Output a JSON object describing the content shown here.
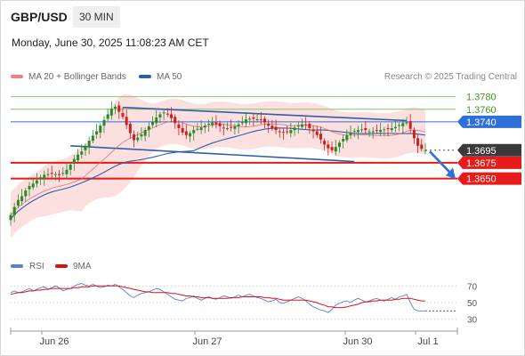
{
  "header": {
    "symbol": "GBP/USD",
    "timeframe": "30 MIN",
    "datetime": "Monday, June 30, 2025 11:08:23 AM CET"
  },
  "legend": {
    "ma20": "MA 20 + Bollinger Bands",
    "ma50": "MA 50",
    "copyright": "Research © 2025 Trading Central"
  },
  "colors": {
    "up": "#2a8a2a",
    "down": "#cc1f1f",
    "ma20": "#f08080",
    "ma50": "#2f5ea8",
    "band": "#fbd5d5",
    "resistance_light": "#8ac46a",
    "pivot": "#2f6fd8",
    "support": "#e81b1b",
    "current": "#3a3a3a",
    "channel": "#2f5ea8",
    "rsi": "#5b7fd6",
    "rsi_ma": "#e01010"
  },
  "chart_data": [
    {
      "type": "candlestick",
      "title": "",
      "x_labels": [
        "Jun 26",
        "Jun 27",
        "Jun 30",
        "Jul 1"
      ],
      "ylim": [
        1.3535,
        1.3795
      ],
      "levels": [
        {
          "name": "resistance-2",
          "value": 1.378,
          "label": "1.3780",
          "style": "resistance_light"
        },
        {
          "name": "resistance-1",
          "value": 1.376,
          "label": "1.3760",
          "style": "resistance_light"
        },
        {
          "name": "pivot",
          "value": 1.374,
          "label": "1.3740",
          "style": "pivot"
        },
        {
          "name": "current-price",
          "value": 1.3695,
          "label": "1.3695",
          "style": "current"
        },
        {
          "name": "support-1",
          "value": 1.3675,
          "label": "1.3675",
          "style": "support"
        },
        {
          "name": "support-2",
          "value": 1.365,
          "label": "1.3650",
          "style": "support"
        }
      ],
      "close": [
        1.3592,
        1.3605,
        1.3616,
        1.3622,
        1.3631,
        1.3638,
        1.3642,
        1.3647,
        1.3652,
        1.3656,
        1.3657,
        1.3658,
        1.3657,
        1.3656,
        1.3659,
        1.3664,
        1.3672,
        1.3681,
        1.3688,
        1.3693,
        1.3702,
        1.371,
        1.3718,
        1.3725,
        1.3734,
        1.3743,
        1.3752,
        1.3761,
        1.3764,
        1.3756,
        1.3748,
        1.3735,
        1.3722,
        1.3711,
        1.3715,
        1.372,
        1.3727,
        1.3733,
        1.374,
        1.3747,
        1.3752,
        1.3755,
        1.3752,
        1.3746,
        1.3738,
        1.373,
        1.3723,
        1.3719,
        1.3722,
        1.3727,
        1.3729,
        1.3731,
        1.3734,
        1.3737,
        1.3739,
        1.3736,
        1.3733,
        1.373,
        1.373,
        1.3731,
        1.3733,
        1.3736,
        1.374,
        1.3744,
        1.3745,
        1.3745,
        1.3744,
        1.3743,
        1.3739,
        1.3734,
        1.373,
        1.3727,
        1.3724,
        1.3723,
        1.3724,
        1.3727,
        1.3731,
        1.3734,
        1.3736,
        1.3735,
        1.373,
        1.3725,
        1.3719,
        1.3712,
        1.3704,
        1.3698,
        1.3695,
        1.37,
        1.3707,
        1.3713,
        1.3719,
        1.3723,
        1.3726,
        1.3727,
        1.3728,
        1.3727,
        1.3725,
        1.3725,
        1.3726,
        1.3727,
        1.3728,
        1.3729,
        1.373,
        1.3732,
        1.3735,
        1.3738,
        1.3739,
        1.3729,
        1.3714,
        1.3702,
        1.3697,
        1.3695
      ]
    },
    {
      "type": "line",
      "title": "",
      "series": [
        {
          "name": "RSI"
        },
        {
          "name": "9MA"
        }
      ],
      "y_ticks": [
        70,
        50,
        30
      ],
      "ylim": [
        20,
        80
      ],
      "rsi": [
        62,
        64,
        62,
        63,
        65,
        67,
        64,
        66,
        68,
        69,
        66,
        68,
        70,
        68,
        64,
        66,
        67,
        70,
        72,
        73,
        71,
        70,
        72,
        70,
        68,
        69,
        71,
        70,
        72,
        69,
        66,
        62,
        58,
        56,
        59,
        61,
        62,
        63,
        65,
        67,
        66,
        63,
        60,
        57,
        54,
        53,
        52,
        55,
        56,
        58,
        55,
        53,
        55,
        57,
        55,
        54,
        56,
        58,
        57,
        55,
        57,
        59,
        57,
        59,
        60,
        58,
        56,
        55,
        53,
        51,
        52,
        54,
        50,
        49,
        51,
        53,
        55,
        57,
        55,
        52,
        48,
        45,
        43,
        41,
        40,
        38,
        42,
        47,
        49,
        51,
        52,
        50,
        53,
        55,
        53,
        51,
        52,
        54,
        55,
        53,
        52,
        54,
        56,
        54,
        57,
        58,
        60,
        50,
        42,
        40,
        40,
        40
      ],
      "ma9": [
        60,
        61,
        62,
        62,
        63,
        64,
        64,
        65,
        65,
        66,
        66,
        67,
        67,
        67,
        67,
        67,
        67,
        68,
        68,
        69,
        69,
        69,
        70,
        70,
        70,
        70,
        70,
        70,
        70,
        70,
        69,
        68,
        67,
        66,
        65,
        64,
        63,
        63,
        62,
        62,
        62,
        62,
        62,
        61,
        61,
        60,
        59,
        58,
        58,
        57,
        57,
        56,
        56,
        56,
        55,
        55,
        55,
        55,
        55,
        56,
        56,
        56,
        57,
        57,
        57,
        57,
        57,
        57,
        56,
        56,
        55,
        55,
        54,
        53,
        53,
        53,
        53,
        53,
        53,
        53,
        52,
        51,
        50,
        48,
        47,
        45,
        45,
        44,
        44,
        44,
        45,
        46,
        47,
        48,
        50,
        51,
        51,
        52,
        52,
        53,
        53,
        53,
        53,
        54,
        54,
        55,
        55,
        55,
        54,
        53,
        52,
        52
      ]
    }
  ]
}
